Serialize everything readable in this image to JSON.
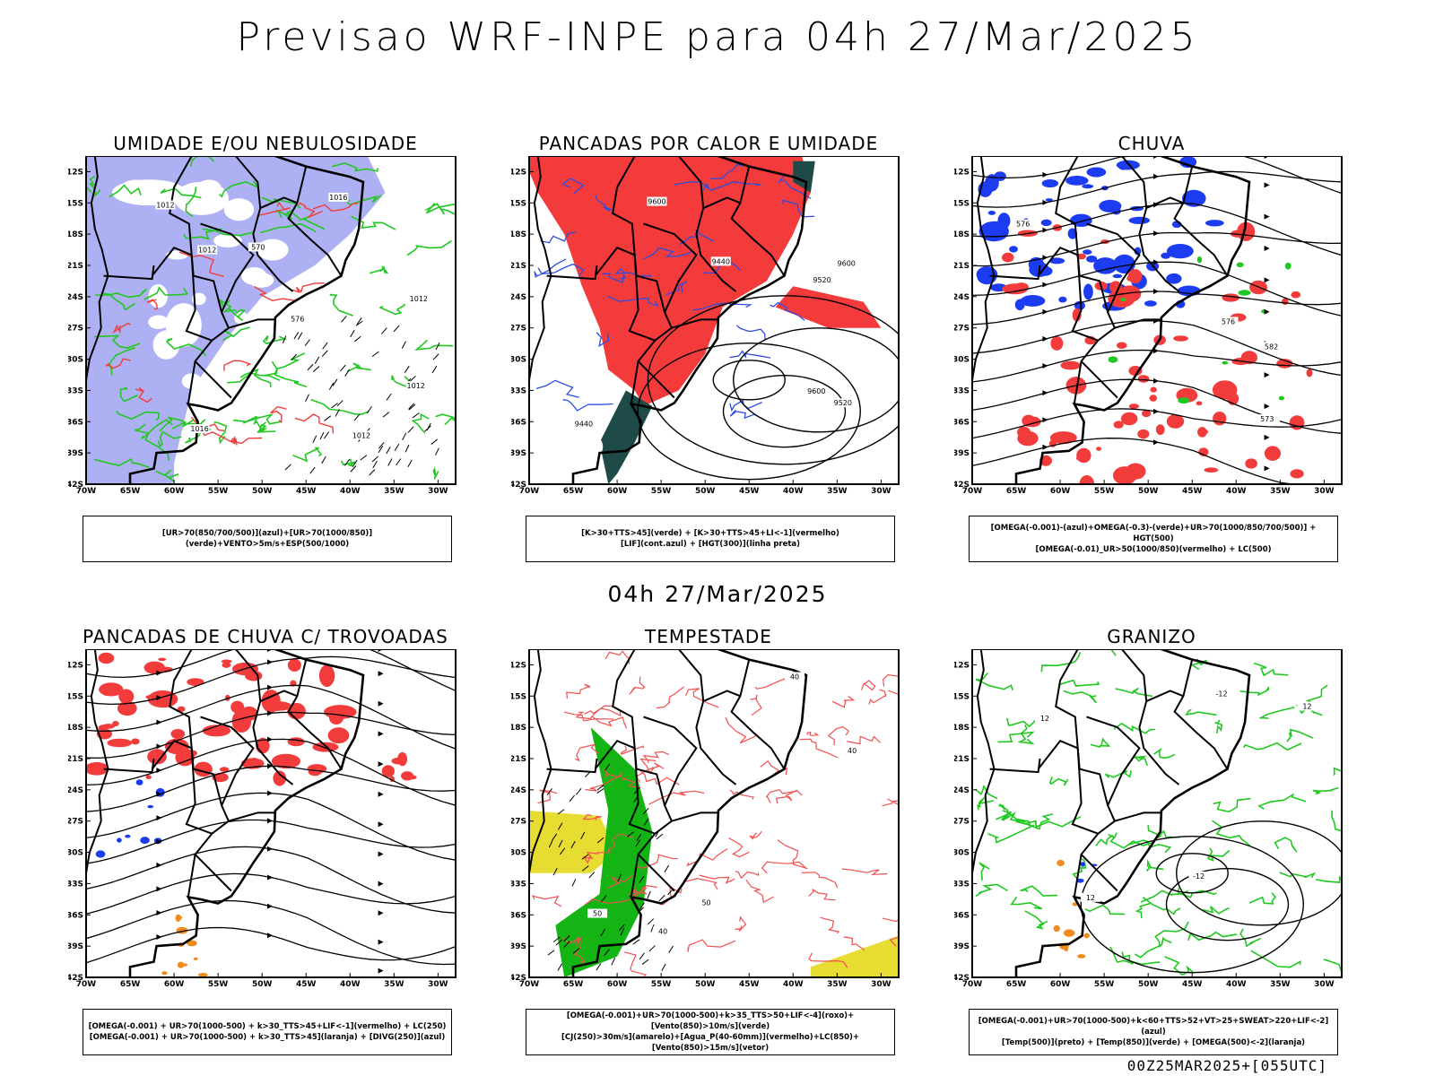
{
  "title": "Previsao WRF-INPE  para 04h 27/Mar/2025",
  "subtitle": "04h 27/Mar/2025",
  "footer": "00Z25MAR2025+[055UTC]",
  "axes": {
    "lat_labels": [
      "12S",
      "15S",
      "18S",
      "21S",
      "24S",
      "27S",
      "30S",
      "33S",
      "36S",
      "39S",
      "42S"
    ],
    "lon_labels": [
      "70W",
      "65W",
      "60W",
      "55W",
      "50W",
      "45W",
      "40W",
      "35W",
      "30W"
    ]
  },
  "panels": [
    {
      "title": "UMIDADE E/OU NEBULOSIDADE",
      "legend": [
        "[UR>70(850/700/500)](azul)+[UR>70(1000/850)](verde)+VENTO>5m/s+ESP(500/1000)"
      ],
      "fills": {
        "blue": "#aeb0f4",
        "green": "#21c821",
        "red": "#f23c3c"
      },
      "contour_labels": [
        "1012",
        "1012",
        "1012",
        "1012",
        "1016",
        "1016",
        "1012",
        "576",
        "570"
      ]
    },
    {
      "title": "PANCADAS POR CALOR E UMIDADE",
      "legend": [
        "[K>30+TTS>45](verde) + [K>30+TTS>45+LI<-1](vermelho)",
        "[LIF](cont.azul) + [HGT(300)](linha preta)"
      ],
      "fills": {
        "red": "#f33b3b",
        "dark": "#1e4a48",
        "blue": "#2e4ddf"
      },
      "contour_labels": [
        "9600",
        "9600",
        "9520",
        "9440",
        "9440",
        "9600",
        "9520"
      ]
    },
    {
      "title": "CHUVA",
      "legend": [
        "[OMEGA(-0.001)-(azul)+OMEGA(-0.3)-(verde)+UR>70(1000/850/700/500)] + HGT(500)",
        "[OMEGA(-0.01)_UR>50(1000/850)(vermelho) + LC(500)"
      ],
      "fills": {
        "blue": "#1b3cf0",
        "red": "#f23c3c",
        "green": "#21c821"
      },
      "contour_labels": [
        "582",
        "576",
        "576",
        "576",
        "573"
      ]
    },
    {
      "title": "PANCADAS DE CHUVA C/ TROVOADAS",
      "legend": [
        "[OMEGA(-0.001) + UR>70(1000-500) + k>30_TTS>45+LIF<-1](vermelho) + LC(250)",
        "[OMEGA(-0.001) + UR>70(1000-500) + k>30_TTS>45](laranja) + [DIVG(250)](azul)"
      ],
      "fills": {
        "red": "#f23c3c",
        "orange": "#f08c1e",
        "blue": "#1b3cf0"
      },
      "contour_labels": []
    },
    {
      "title": "TEMPESTADE",
      "legend": [
        "[OMEGA(-0.001)+UR>70(1000-500)+k>35_TTS>50+LIF<-4](roxo)+[Vento(850)>10m/s](verde)",
        "[CJ(250)>30m/s](amarelo)+[Agua_P(40-60mm)](vermelho)+LC(850)+[Vento(850)>15m/s](vetor)"
      ],
      "fills": {
        "yellow": "#e6dc32",
        "green": "#14b414",
        "red": "#f05050"
      },
      "contour_labels": [
        "40",
        "40",
        "40",
        "50",
        "50"
      ]
    },
    {
      "title": "GRANIZO",
      "legend": [
        "[OMEGA(-0.001)+UR>70(1000-500)+k<60+TTS>52+VT>25+SWEAT>220+LIF<-2](azul)",
        "[Temp(500)](preto) + [Temp(850)](verde) + [OMEGA(500)<-2](laranja)"
      ],
      "fills": {
        "green": "#21c821",
        "orange": "#f08c1e",
        "blue": "#1b3cf0"
      },
      "contour_labels": [
        "12",
        "12",
        "-12",
        "-12",
        "12"
      ]
    }
  ]
}
